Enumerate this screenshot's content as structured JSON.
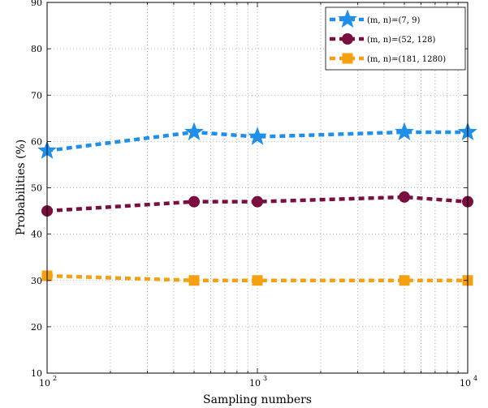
{
  "chart_data": {
    "type": "line",
    "title": "",
    "xlabel": "Sampling numbers",
    "ylabel": "Probabilities (%)",
    "x_scale": "log",
    "xlim": [
      100,
      10000
    ],
    "ylim": [
      10,
      90
    ],
    "x_ticks": [
      {
        "value": 100,
        "base": "10",
        "exp": "2"
      },
      {
        "value": 1000,
        "base": "10",
        "exp": "3"
      },
      {
        "value": 10000,
        "base": "10",
        "exp": "4"
      }
    ],
    "y_ticks": [
      10,
      20,
      30,
      40,
      50,
      60,
      70,
      80,
      90
    ],
    "grid": true,
    "legend_position": "top-right",
    "x": [
      100,
      500,
      1000,
      5000,
      10000
    ],
    "series": [
      {
        "name": "(m, n)=(7, 9)",
        "values": [
          58,
          62,
          61,
          62,
          62
        ],
        "color": "#1f8fea",
        "marker": "star"
      },
      {
        "name": "(m, n)=(52, 128)",
        "values": [
          45,
          47,
          47,
          48,
          47
        ],
        "color": "#7a0f3f",
        "marker": "circle"
      },
      {
        "name": "(m, n)=(181, 1280)",
        "values": [
          31,
          30,
          30,
          30,
          30
        ],
        "color": "#f5a00e",
        "marker": "square"
      }
    ]
  }
}
